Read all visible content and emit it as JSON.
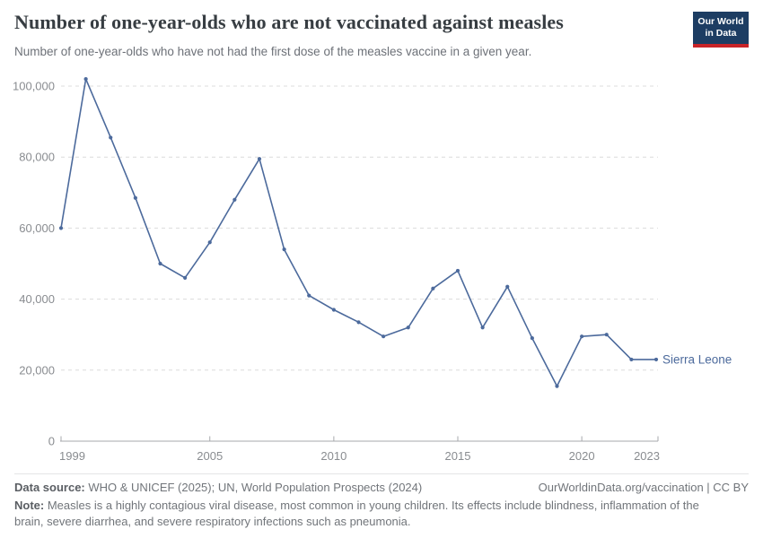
{
  "header": {
    "title": "Number of one-year-olds who are not vaccinated against measles",
    "subtitle": "Number of one-year-olds who have not had the first dose of the measles vaccine in a given year.",
    "logo": {
      "line1": "Our World",
      "line2": "in Data"
    }
  },
  "colors": {
    "series": "#4c6a9c",
    "logo_bg": "#1d3d63",
    "logo_underline": "#c82328",
    "gridline": "#dcdcdc",
    "axis": "#a7a9ac",
    "tick_label": "#898c90"
  },
  "chart_data": {
    "type": "line",
    "title": "Number of one-year-olds who are not vaccinated against measles",
    "xlabel": "",
    "ylabel": "",
    "xlim": [
      1999,
      2023
    ],
    "ylim": [
      0,
      100000
    ],
    "grid": "dashed horizontal",
    "legend": "end-of-line entity label",
    "x": [
      1999,
      2000,
      2001,
      2002,
      2003,
      2004,
      2005,
      2006,
      2007,
      2008,
      2009,
      2010,
      2011,
      2012,
      2013,
      2014,
      2015,
      2016,
      2017,
      2018,
      2019,
      2020,
      2021,
      2022,
      2023
    ],
    "series": [
      {
        "name": "Sierra Leone",
        "color": "#4c6a9c",
        "values": [
          60000,
          102000,
          85500,
          68500,
          50000,
          46000,
          56000,
          68000,
          79500,
          54000,
          41000,
          37000,
          33500,
          29500,
          32000,
          43000,
          48000,
          32000,
          43500,
          29000,
          15500,
          29500,
          30000,
          23000,
          23000
        ]
      }
    ],
    "x_ticks": [
      1999,
      2005,
      2010,
      2015,
      2020,
      2023
    ],
    "x_tick_labels": [
      "1999",
      "2005",
      "2010",
      "2015",
      "2020",
      "2023"
    ],
    "y_ticks": [
      0,
      20000,
      40000,
      60000,
      80000,
      100000
    ],
    "y_tick_labels": [
      "0",
      "20,000",
      "40,000",
      "60,000",
      "80,000",
      "100,000"
    ]
  },
  "footer": {
    "datasource_label": "Data source:",
    "datasource_text": "WHO & UNICEF (2025); UN, World Population Prospects (2024)",
    "credit": "OurWorldinData.org/vaccination | CC BY",
    "note_label": "Note:",
    "note_text": "Measles is a highly contagious viral disease, most common in young children. Its effects include blindness, inflammation of the brain, severe diarrhea, and severe respiratory infections such as pneumonia."
  }
}
